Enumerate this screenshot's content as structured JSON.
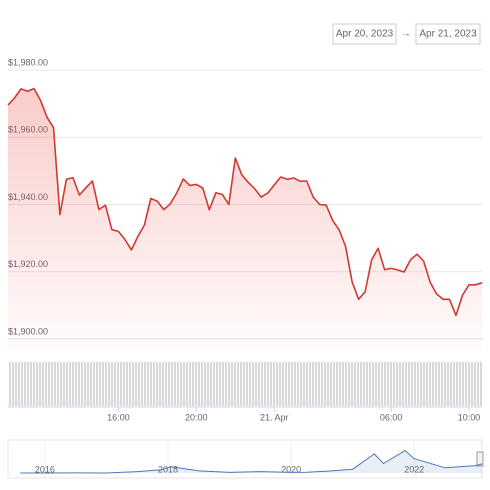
{
  "range_selector": {
    "from": "Apr 20, 2023",
    "separator": "→",
    "to": "Apr 21, 2023"
  },
  "chart_data": [
    {
      "type": "line",
      "color": "#d03a32",
      "grid": true,
      "x": [
        "2023-04-20T10:20",
        "2023-04-20T10:40",
        "2023-04-20T11:00",
        "2023-04-20T11:20",
        "2023-04-20T11:40",
        "2023-04-20T12:00",
        "2023-04-20T12:20",
        "2023-04-20T12:40",
        "2023-04-20T13:00",
        "2023-04-20T13:20",
        "2023-04-20T13:40",
        "2023-04-20T14:00",
        "2023-04-20T14:20",
        "2023-04-20T14:40",
        "2023-04-20T15:00",
        "2023-04-20T15:20",
        "2023-04-20T15:40",
        "2023-04-20T16:00",
        "2023-04-20T16:20",
        "2023-04-20T16:40",
        "2023-04-20T17:00",
        "2023-04-20T17:20",
        "2023-04-20T17:40",
        "2023-04-20T18:00",
        "2023-04-20T18:20",
        "2023-04-20T18:40",
        "2023-04-20T19:00",
        "2023-04-20T19:20",
        "2023-04-20T19:40",
        "2023-04-20T20:00",
        "2023-04-20T20:20",
        "2023-04-20T20:40",
        "2023-04-20T21:00",
        "2023-04-20T21:20",
        "2023-04-20T21:40",
        "2023-04-20T22:00",
        "2023-04-20T22:20",
        "2023-04-20T22:40",
        "2023-04-20T23:00",
        "2023-04-20T23:20",
        "2023-04-20T23:40",
        "2023-04-21T00:00",
        "2023-04-21T00:20",
        "2023-04-21T00:40",
        "2023-04-21T01:00",
        "2023-04-21T01:20",
        "2023-04-21T01:40",
        "2023-04-21T02:00",
        "2023-04-21T02:20",
        "2023-04-21T02:40",
        "2023-04-21T03:00",
        "2023-04-21T03:20",
        "2023-04-21T03:40",
        "2023-04-21T04:00",
        "2023-04-21T04:20",
        "2023-04-21T04:40",
        "2023-04-21T05:00",
        "2023-04-21T05:20",
        "2023-04-21T05:40",
        "2023-04-21T06:00",
        "2023-04-21T06:20",
        "2023-04-21T06:40",
        "2023-04-21T07:00",
        "2023-04-21T07:20",
        "2023-04-21T07:40",
        "2023-04-21T08:00",
        "2023-04-21T08:20",
        "2023-04-21T08:40",
        "2023-04-21T09:00",
        "2023-04-21T09:20",
        "2023-04-21T09:40",
        "2023-04-21T10:00",
        "2023-04-21T10:20",
        "2023-04-21T10:40"
      ],
      "values": [
        1969.6,
        1971.7,
        1974.4,
        1973.7,
        1974.5,
        1971,
        1966,
        1962.9,
        1937,
        1947.5,
        1948,
        1942.8,
        1945,
        1947,
        1938.5,
        1939.8,
        1932.5,
        1932,
        1929.6,
        1926.5,
        1930.5,
        1933.9,
        1941.8,
        1941,
        1938.5,
        1940.2,
        1943.5,
        1947.6,
        1945.7,
        1946,
        1944.9,
        1938.4,
        1943.5,
        1943,
        1940,
        1953.8,
        1948.8,
        1946.6,
        1944.7,
        1942.2,
        1943.4,
        1945.8,
        1948.2,
        1947.5,
        1947.9,
        1946.9,
        1947,
        1942.2,
        1940,
        1939.8,
        1935.2,
        1932.4,
        1927.5,
        1917,
        1911.8,
        1914,
        1923.5,
        1927,
        1920.6,
        1921,
        1920.5,
        1919.9,
        1923.6,
        1925.2,
        1923.2,
        1916.9,
        1913.4,
        1911.8,
        1911.8,
        1907,
        1913,
        1916.1,
        1916.1,
        1916.7
      ],
      "xlim": [
        "2023-04-20T10:20",
        "2023-04-21T10:40"
      ],
      "xticks": [
        {
          "value": "2023-04-20T16:00",
          "label": "16:00"
        },
        {
          "value": "2023-04-20T20:00",
          "label": "20:00"
        },
        {
          "value": "2023-04-21T00:00",
          "label": "21. Apr"
        },
        {
          "value": "2023-04-21T06:00",
          "label": "06:00"
        },
        {
          "value": "2023-04-21T10:00",
          "label": "10:00"
        }
      ],
      "ylim": [
        1896.7,
        1984.2
      ],
      "yticks": [
        {
          "value": 1900,
          "label": "$1,900.00"
        },
        {
          "value": 1920,
          "label": "$1,920.00"
        },
        {
          "value": 1940,
          "label": "$1,940.00"
        },
        {
          "value": 1960,
          "label": "$1,960.00"
        },
        {
          "value": 1980,
          "label": "$1,980.00"
        }
      ]
    },
    {
      "type": "line",
      "color": "#4a78b5",
      "x": [
        2015.6,
        2016,
        2016.5,
        2017,
        2017.5,
        2017.9,
        2018.05,
        2018.5,
        2019,
        2019.5,
        2020,
        2020.25,
        2020.6,
        2021,
        2021.35,
        2021.5,
        2021.85,
        2022,
        2022.5,
        2023,
        2023.1
      ],
      "values": [
        1,
        1,
        12,
        10,
        300,
        700,
        1300,
        450,
        120,
        300,
        130,
        150,
        400,
        800,
        4000,
        2000,
        4700,
        3000,
        1100,
        1550,
        1900
      ],
      "xlim": [
        2015.4,
        2023.1
      ],
      "ylim": [
        0,
        6500
      ],
      "xticks": [
        2016,
        2018,
        2020,
        2022
      ]
    }
  ]
}
